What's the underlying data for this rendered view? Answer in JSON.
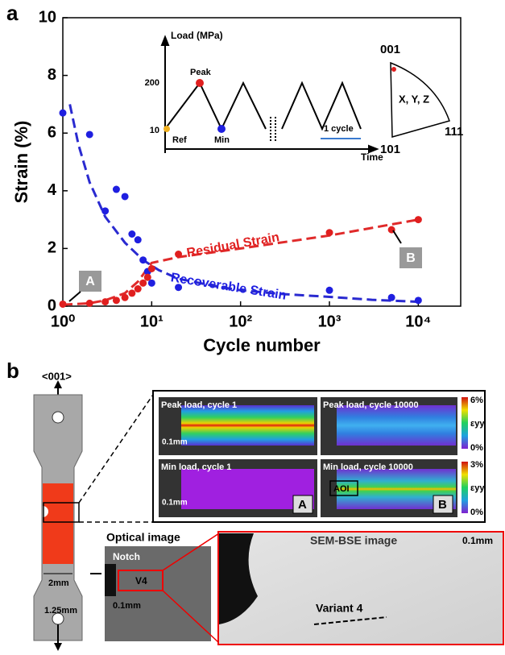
{
  "chart_data": {
    "type": "scatter",
    "panel": "a",
    "x_label": "Cycle number",
    "y_label": "Strain (%)",
    "xlim": [
      1,
      30000
    ],
    "log_x": true,
    "xticks": [
      {
        "value": 1,
        "label": "10⁰"
      },
      {
        "value": 10,
        "label": "10¹"
      },
      {
        "value": 100,
        "label": "10²"
      },
      {
        "value": 1000,
        "label": "10³"
      },
      {
        "value": 10000,
        "label": "10⁴"
      }
    ],
    "ylim": [
      0,
      10
    ],
    "yticks": [
      0,
      2,
      4,
      6,
      8,
      10
    ],
    "series": [
      {
        "color": "#1f1fe0",
        "x": [
          1,
          2,
          3,
          4,
          5,
          6,
          7,
          8,
          9,
          10,
          20,
          1000,
          5000,
          10000
        ],
        "values": [
          6.7,
          5.95,
          3.3,
          4.05,
          3.8,
          2.5,
          2.3,
          1.6,
          1.2,
          0.8,
          0.65,
          0.55,
          0.3,
          0.2
        ]
      },
      {
        "color": "#e01f1f",
        "x": [
          1,
          2,
          3,
          4,
          5,
          6,
          7,
          8,
          9,
          10,
          20,
          1000,
          5000,
          10000
        ],
        "values": [
          0.07,
          0.1,
          0.15,
          0.2,
          0.3,
          0.45,
          0.6,
          0.8,
          1.0,
          1.3,
          1.8,
          2.55,
          2.65,
          3.0
        ]
      }
    ],
    "fits": [
      {
        "color": "#2a2ad0",
        "x": [
          1.2,
          1.5,
          2,
          3,
          5,
          8,
          12,
          20,
          50,
          100,
          300,
          1000,
          3000,
          10000
        ],
        "values": [
          7.0,
          5.6,
          4.3,
          3.1,
          2.2,
          1.6,
          1.25,
          0.95,
          0.7,
          0.55,
          0.42,
          0.32,
          0.22,
          0.15
        ]
      },
      {
        "color": "#e02a2a",
        "x": [
          1,
          2,
          3,
          5,
          7,
          10,
          20,
          100,
          1000,
          10000
        ],
        "values": [
          0.05,
          0.1,
          0.2,
          0.45,
          0.85,
          1.5,
          1.7,
          2.0,
          2.45,
          3.0
        ]
      }
    ],
    "annotations": [
      "Residual Strain",
      "Recoverable Strain",
      "A",
      "B"
    ],
    "inset": {
      "y_label": "Load (MPa)",
      "x_label": "Time",
      "levels": [
        "200",
        "10"
      ],
      "points": [
        "Peak",
        "Ref",
        "Min"
      ],
      "period": "1 cycle"
    },
    "pole_figure": {
      "corners": [
        "001",
        "101",
        "111"
      ],
      "label": "X, Y, Z"
    }
  },
  "panel_b": {
    "label": "b",
    "direction": "<001>",
    "width": "2mm",
    "hole": "1.25mm",
    "maps": [
      {
        "title": "Peak load, cycle 1",
        "scale": "0.1mm"
      },
      {
        "title": "Peak load, cycle 10000"
      },
      {
        "title": "Min load, cycle 1",
        "scale": "0.1mm",
        "tag": "A"
      },
      {
        "title": "Min load, cycle 10000",
        "roi": "AOI",
        "tag": "B"
      }
    ],
    "colorbars": [
      {
        "max": "6%",
        "min": "0%",
        "label": "εyy"
      },
      {
        "max": "3%",
        "min": "0%",
        "label": "εyy"
      }
    ],
    "optical": {
      "title": "Optical image",
      "notch": "Notch",
      "variant": "V4",
      "scale": "0.1mm"
    },
    "sem": {
      "title": "SEM-BSE image",
      "scale": "0.1mm",
      "variant": "Variant 4"
    }
  }
}
